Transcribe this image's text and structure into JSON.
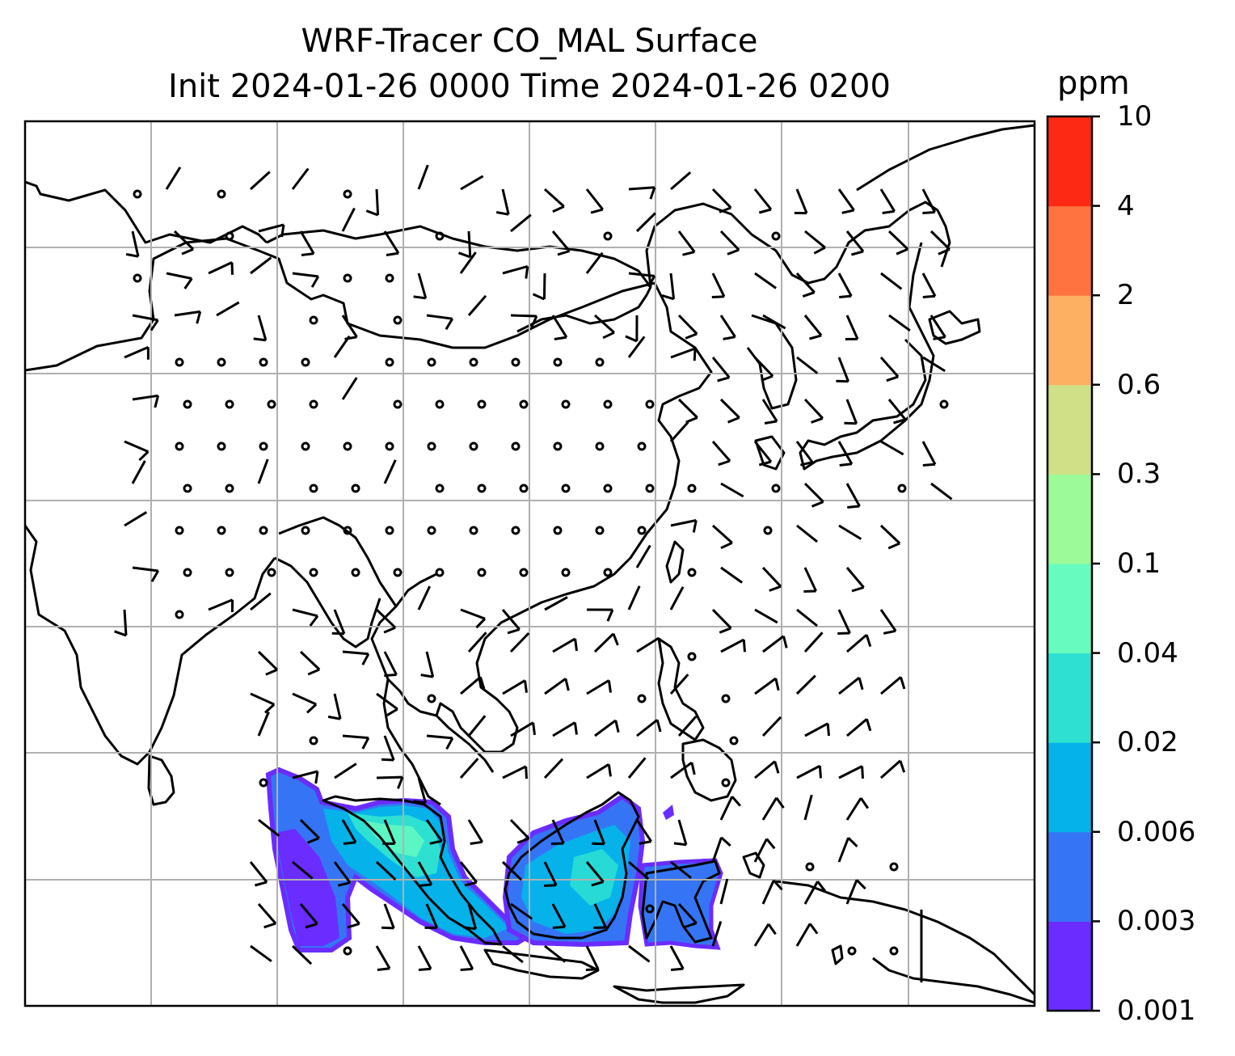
{
  "title": {
    "line1": "WRF-Tracer CO_MAL Surface",
    "line2": "Init 2024-01-26 0000 Time 2024-01-26 0200"
  },
  "colorbar": {
    "unit": "ppm",
    "levels": [
      "0.001",
      "0.003",
      "0.006",
      "0.02",
      "0.04",
      "0.1",
      "0.3",
      "0.6",
      "2",
      "4",
      "10"
    ],
    "colors": [
      "#6a2cff",
      "#3575f5",
      "#05b2ea",
      "#2ee0d2",
      "#68fbc0",
      "#9cfb98",
      "#d0e087",
      "#fdb062",
      "#fe7340",
      "#fe2914"
    ]
  },
  "map": {
    "gridlines": "on",
    "coastline_color": "#000000",
    "tracer_region": "Sumatra, Malay Peninsula and Borneo"
  }
}
